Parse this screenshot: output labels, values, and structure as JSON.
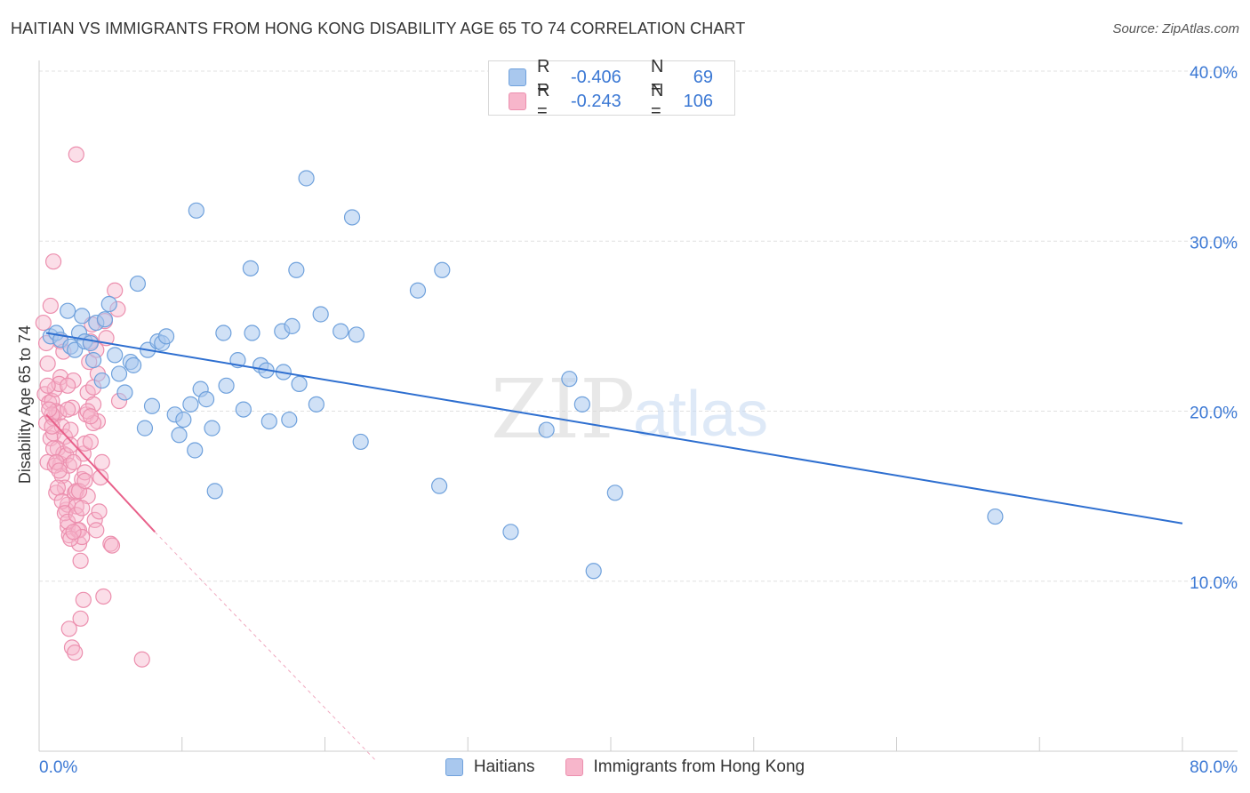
{
  "header": {
    "title": "HAITIAN VS IMMIGRANTS FROM HONG KONG DISABILITY AGE 65 TO 74 CORRELATION CHART",
    "source": "Source: ZipAtlas.com"
  },
  "watermark": {
    "zip": "ZIP",
    "atlas": "atlas"
  },
  "legend": {
    "rows": [
      {
        "r_label": "R =",
        "r_value": "-0.406",
        "n_label": "N =",
        "n_value": "69"
      },
      {
        "r_label": "R =",
        "r_value": "-0.243",
        "n_label": "N =",
        "n_value": "106"
      }
    ]
  },
  "bottom_legend": {
    "items": [
      {
        "label": "Haitians"
      },
      {
        "label": "Immigrants from Hong Kong"
      }
    ]
  },
  "colors": {
    "haitians_fill": "#a9c8ee",
    "haitians_stroke": "#6fa1dc",
    "haitians_line": "#2e6fd0",
    "hongkong_fill": "#f7b6cb",
    "hongkong_stroke": "#ec8fae",
    "hongkong_line": "#e8608a",
    "tick_label": "#3b78d4",
    "grid": "#e0e0e0"
  },
  "chart_data": {
    "type": "scatter",
    "title": "HAITIAN VS IMMIGRANTS FROM HONG KONG DISABILITY AGE 65 TO 74 CORRELATION CHART",
    "xlabel": "",
    "ylabel": "Disability Age 65 to 74",
    "xlim": [
      0,
      80
    ],
    "ylim": [
      0,
      40
    ],
    "x_tick_labels": [
      "0.0%",
      "80.0%"
    ],
    "y_ticks": [
      10,
      20,
      30,
      40
    ],
    "y_tick_labels": [
      "10.0%",
      "20.0%",
      "30.0%",
      "40.0%"
    ],
    "grid": true,
    "legend_position": "top-center",
    "series": [
      {
        "name": "Haitians",
        "trend": {
          "x": [
            0.5,
            80
          ],
          "y": [
            24.6,
            13.4
          ]
        },
        "points": [
          [
            0.8,
            24.4
          ],
          [
            1.2,
            24.6
          ],
          [
            1.5,
            24.2
          ],
          [
            2.0,
            25.9
          ],
          [
            2.2,
            23.8
          ],
          [
            2.8,
            24.6
          ],
          [
            2.5,
            23.6
          ],
          [
            3.0,
            25.6
          ],
          [
            3.2,
            24.1
          ],
          [
            3.6,
            24.0
          ],
          [
            3.8,
            23.0
          ],
          [
            4.0,
            25.2
          ],
          [
            4.4,
            21.8
          ],
          [
            4.6,
            25.4
          ],
          [
            4.9,
            26.3
          ],
          [
            5.3,
            23.3
          ],
          [
            5.6,
            22.2
          ],
          [
            6.0,
            21.1
          ],
          [
            6.4,
            22.9
          ],
          [
            6.6,
            22.7
          ],
          [
            6.9,
            27.5
          ],
          [
            7.4,
            19.0
          ],
          [
            7.6,
            23.6
          ],
          [
            7.9,
            20.3
          ],
          [
            8.3,
            24.1
          ],
          [
            8.6,
            24.0
          ],
          [
            8.9,
            24.4
          ],
          [
            9.5,
            19.8
          ],
          [
            9.8,
            18.6
          ],
          [
            10.1,
            19.5
          ],
          [
            10.6,
            20.4
          ],
          [
            10.9,
            17.7
          ],
          [
            11.0,
            31.8
          ],
          [
            11.3,
            21.3
          ],
          [
            11.7,
            20.7
          ],
          [
            12.1,
            19.0
          ],
          [
            12.3,
            15.3
          ],
          [
            12.9,
            24.6
          ],
          [
            13.1,
            21.5
          ],
          [
            13.9,
            23.0
          ],
          [
            14.3,
            20.1
          ],
          [
            14.8,
            28.4
          ],
          [
            14.9,
            24.6
          ],
          [
            15.5,
            22.7
          ],
          [
            15.9,
            22.4
          ],
          [
            16.1,
            19.4
          ],
          [
            17.0,
            24.7
          ],
          [
            17.1,
            22.3
          ],
          [
            17.5,
            19.5
          ],
          [
            17.7,
            25.0
          ],
          [
            18.2,
            21.6
          ],
          [
            18.7,
            33.7
          ],
          [
            19.4,
            20.4
          ],
          [
            19.7,
            25.7
          ],
          [
            21.1,
            24.7
          ],
          [
            21.9,
            31.4
          ],
          [
            22.2,
            24.5
          ],
          [
            22.5,
            18.2
          ],
          [
            26.5,
            27.1
          ],
          [
            28.2,
            28.3
          ],
          [
            28.0,
            15.6
          ],
          [
            33.0,
            12.9
          ],
          [
            35.5,
            18.9
          ],
          [
            37.1,
            21.9
          ],
          [
            38.0,
            20.4
          ],
          [
            38.8,
            10.6
          ],
          [
            40.3,
            15.2
          ],
          [
            66.9,
            13.8
          ],
          [
            18.0,
            28.3
          ]
        ]
      },
      {
        "name": "Immigrants from Hong Kong",
        "trend": {
          "x": [
            0.5,
            8.1
          ],
          "y": [
            19.8,
            12.9
          ]
        },
        "trend_dashed": {
          "x": [
            8.1,
            23.5
          ],
          "y": [
            12.9,
            -0.5
          ]
        },
        "points": [
          [
            0.3,
            25.2
          ],
          [
            0.5,
            24.0
          ],
          [
            0.6,
            22.8
          ],
          [
            0.4,
            21.0
          ],
          [
            0.7,
            20.5
          ],
          [
            0.5,
            19.3
          ],
          [
            0.8,
            18.4
          ],
          [
            0.6,
            17.0
          ],
          [
            0.9,
            20.6
          ],
          [
            1.0,
            19.6
          ],
          [
            1.1,
            21.3
          ],
          [
            1.2,
            20.0
          ],
          [
            1.0,
            18.7
          ],
          [
            1.3,
            17.8
          ],
          [
            1.4,
            19.9
          ],
          [
            1.5,
            16.9
          ],
          [
            1.5,
            22.0
          ],
          [
            1.6,
            19.1
          ],
          [
            1.7,
            17.5
          ],
          [
            1.6,
            16.2
          ],
          [
            1.8,
            15.5
          ],
          [
            1.9,
            17.4
          ],
          [
            1.8,
            18.5
          ],
          [
            1.2,
            15.2
          ],
          [
            1.9,
            14.2
          ],
          [
            2.0,
            13.2
          ],
          [
            2.1,
            12.7
          ],
          [
            2.0,
            14.5
          ],
          [
            2.1,
            16.8
          ],
          [
            2.2,
            18.9
          ],
          [
            2.3,
            20.2
          ],
          [
            2.4,
            21.8
          ],
          [
            2.5,
            15.2
          ],
          [
            2.6,
            14.4
          ],
          [
            2.7,
            13.0
          ],
          [
            2.8,
            12.2
          ],
          [
            2.9,
            11.2
          ],
          [
            3.0,
            16.0
          ],
          [
            3.1,
            17.5
          ],
          [
            3.2,
            18.1
          ],
          [
            3.3,
            19.8
          ],
          [
            3.4,
            21.1
          ],
          [
            3.5,
            22.9
          ],
          [
            3.6,
            24.1
          ],
          [
            3.7,
            25.1
          ],
          [
            3.8,
            20.4
          ],
          [
            3.9,
            13.6
          ],
          [
            4.0,
            13.0
          ],
          [
            4.2,
            14.1
          ],
          [
            4.1,
            19.4
          ],
          [
            4.3,
            16.1
          ],
          [
            4.4,
            17.0
          ],
          [
            4.6,
            25.3
          ],
          [
            4.7,
            24.3
          ],
          [
            5.0,
            12.2
          ],
          [
            5.1,
            12.1
          ],
          [
            5.3,
            27.1
          ],
          [
            5.5,
            26.0
          ],
          [
            5.6,
            20.6
          ],
          [
            2.6,
            35.1
          ],
          [
            1.0,
            28.8
          ],
          [
            2.1,
            7.2
          ],
          [
            2.3,
            6.1
          ],
          [
            2.5,
            5.8
          ],
          [
            2.9,
            7.8
          ],
          [
            3.1,
            8.9
          ],
          [
            4.5,
            9.1
          ],
          [
            7.2,
            5.4
          ],
          [
            0.9,
            19.8
          ],
          [
            1.1,
            16.8
          ],
          [
            1.3,
            15.5
          ],
          [
            2.6,
            15.3
          ],
          [
            2.8,
            13.0
          ],
          [
            1.4,
            21.6
          ],
          [
            2.0,
            20.1
          ],
          [
            2.2,
            18.0
          ],
          [
            2.4,
            17.0
          ],
          [
            3.0,
            12.6
          ],
          [
            3.2,
            16.4
          ],
          [
            3.4,
            15.0
          ],
          [
            3.6,
            18.2
          ],
          [
            3.8,
            19.3
          ],
          [
            4.1,
            22.2
          ],
          [
            0.8,
            26.2
          ],
          [
            1.5,
            24.1
          ],
          [
            1.7,
            23.5
          ],
          [
            0.6,
            21.5
          ],
          [
            0.7,
            20.1
          ],
          [
            0.9,
            19.1
          ],
          [
            1.0,
            17.8
          ],
          [
            1.2,
            17.0
          ],
          [
            1.4,
            16.5
          ],
          [
            1.6,
            14.7
          ],
          [
            1.8,
            14.0
          ],
          [
            2.0,
            13.5
          ],
          [
            2.2,
            12.5
          ],
          [
            2.4,
            12.9
          ],
          [
            2.6,
            13.9
          ],
          [
            2.8,
            15.3
          ],
          [
            3.0,
            14.3
          ],
          [
            3.2,
            15.9
          ],
          [
            3.4,
            20.0
          ],
          [
            3.6,
            19.7
          ],
          [
            3.8,
            21.4
          ],
          [
            4.0,
            23.6
          ],
          [
            2.0,
            21.5
          ]
        ]
      }
    ]
  }
}
